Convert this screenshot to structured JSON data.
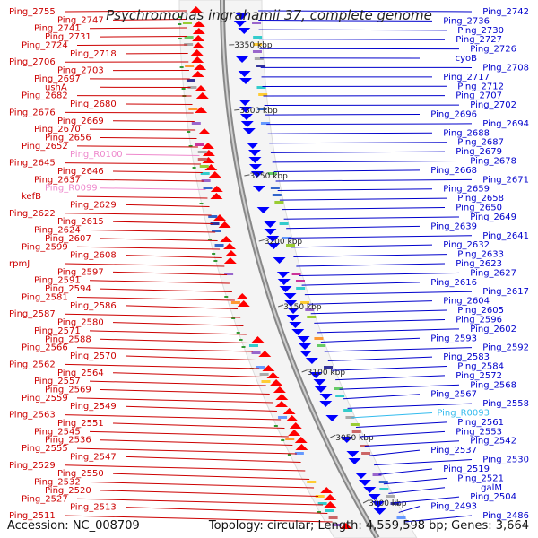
{
  "title": "Psychromonas ingrahamii 37, complete genome",
  "footer": {
    "accession": "Accession: NC_008709",
    "topology": "Topology: circular; Length: 4,559,598 bp; Genes: 3,664"
  },
  "colors": {
    "left_labels": "#cc0000",
    "right_labels": "#0000cc",
    "rna_left": "#ee88cc",
    "rna_right": "#33bbee",
    "backbone": "#888888",
    "forward_strand": "#ff0000",
    "reverse_strand": "#0000ff"
  },
  "position_markers": [
    "3350 kbp",
    "3300 kbp",
    "3250 kbp",
    "3200 kbp",
    "3150 kbp",
    "3100 kbp",
    "3050 kbp",
    "3000 kbp"
  ],
  "left_labels": [
    {
      "label": "Ping_2755",
      "type": "gene"
    },
    {
      "label": "Ping_2747",
      "type": "gene"
    },
    {
      "label": "Ping_2741",
      "type": "gene"
    },
    {
      "label": "Ping_2731",
      "type": "gene"
    },
    {
      "label": "Ping_2724",
      "type": "gene"
    },
    {
      "label": "Ping_2718",
      "type": "gene"
    },
    {
      "label": "Ping_2706",
      "type": "gene"
    },
    {
      "label": "Ping_2703",
      "type": "gene"
    },
    {
      "label": "Ping_2697",
      "type": "gene"
    },
    {
      "label": "ushA",
      "type": "gene"
    },
    {
      "label": "Ping_2682",
      "type": "gene"
    },
    {
      "label": "Ping_2680",
      "type": "gene"
    },
    {
      "label": "Ping_2676",
      "type": "gene"
    },
    {
      "label": "Ping_2669",
      "type": "gene"
    },
    {
      "label": "Ping_2670",
      "type": "gene"
    },
    {
      "label": "Ping_2656",
      "type": "gene"
    },
    {
      "label": "Ping_2652",
      "type": "gene"
    },
    {
      "label": "Ping_R0100",
      "type": "rna"
    },
    {
      "label": "Ping_2645",
      "type": "gene"
    },
    {
      "label": "Ping_2646",
      "type": "gene"
    },
    {
      "label": "Ping_2637",
      "type": "gene"
    },
    {
      "label": "Ping_R0099",
      "type": "rna"
    },
    {
      "label": "kefB",
      "type": "gene"
    },
    {
      "label": "Ping_2629",
      "type": "gene"
    },
    {
      "label": "Ping_2622",
      "type": "gene"
    },
    {
      "label": "Ping_2615",
      "type": "gene"
    },
    {
      "label": "Ping_2624",
      "type": "gene"
    },
    {
      "label": "Ping_2607",
      "type": "gene"
    },
    {
      "label": "Ping_2599",
      "type": "gene"
    },
    {
      "label": "Ping_2608",
      "type": "gene"
    },
    {
      "label": "rpmJ",
      "type": "gene"
    },
    {
      "label": "Ping_2597",
      "type": "gene"
    },
    {
      "label": "Ping_2591",
      "type": "gene"
    },
    {
      "label": "Ping_2594",
      "type": "gene"
    },
    {
      "label": "Ping_2581",
      "type": "gene"
    },
    {
      "label": "Ping_2586",
      "type": "gene"
    },
    {
      "label": "Ping_2587",
      "type": "gene"
    },
    {
      "label": "Ping_2580",
      "type": "gene"
    },
    {
      "label": "Ping_2571",
      "type": "gene"
    },
    {
      "label": "Ping_2588",
      "type": "gene"
    },
    {
      "label": "Ping_2566",
      "type": "gene"
    },
    {
      "label": "Ping_2570",
      "type": "gene"
    },
    {
      "label": "Ping_2562",
      "type": "gene"
    },
    {
      "label": "Ping_2564",
      "type": "gene"
    },
    {
      "label": "Ping_2557",
      "type": "gene"
    },
    {
      "label": "Ping_2569",
      "type": "gene"
    },
    {
      "label": "Ping_2559",
      "type": "gene"
    },
    {
      "label": "Ping_2549",
      "type": "gene"
    },
    {
      "label": "Ping_2563",
      "type": "gene"
    },
    {
      "label": "Ping_2551",
      "type": "gene"
    },
    {
      "label": "Ping_2545",
      "type": "gene"
    },
    {
      "label": "Ping_2536",
      "type": "gene"
    },
    {
      "label": "Ping_2555",
      "type": "gene"
    },
    {
      "label": "Ping_2547",
      "type": "gene"
    },
    {
      "label": "Ping_2529",
      "type": "gene"
    },
    {
      "label": "Ping_2550",
      "type": "gene"
    },
    {
      "label": "Ping_2532",
      "type": "gene"
    },
    {
      "label": "Ping_2520",
      "type": "gene"
    },
    {
      "label": "Ping_2527",
      "type": "gene"
    },
    {
      "label": "Ping_2513",
      "type": "gene"
    },
    {
      "label": "Ping_2511",
      "type": "gene"
    }
  ],
  "right_labels": [
    {
      "label": "Ping_2742",
      "type": "gene"
    },
    {
      "label": "Ping_2736",
      "type": "gene"
    },
    {
      "label": "Ping_2730",
      "type": "gene"
    },
    {
      "label": "Ping_2727",
      "type": "gene"
    },
    {
      "label": "Ping_2726",
      "type": "gene"
    },
    {
      "label": "cyoB",
      "type": "gene"
    },
    {
      "label": "Ping_2708",
      "type": "gene"
    },
    {
      "label": "Ping_2717",
      "type": "gene"
    },
    {
      "label": "Ping_2712",
      "type": "gene"
    },
    {
      "label": "Ping_2707",
      "type": "gene"
    },
    {
      "label": "Ping_2702",
      "type": "gene"
    },
    {
      "label": "Ping_2696",
      "type": "gene"
    },
    {
      "label": "Ping_2694",
      "type": "gene"
    },
    {
      "label": "Ping_2688",
      "type": "gene"
    },
    {
      "label": "Ping_2687",
      "type": "gene"
    },
    {
      "label": "Ping_2679",
      "type": "gene"
    },
    {
      "label": "Ping_2678",
      "type": "gene"
    },
    {
      "label": "Ping_2668",
      "type": "gene"
    },
    {
      "label": "Ping_2671",
      "type": "gene"
    },
    {
      "label": "Ping_2659",
      "type": "gene"
    },
    {
      "label": "Ping_2658",
      "type": "gene"
    },
    {
      "label": "Ping_2650",
      "type": "gene"
    },
    {
      "label": "Ping_2649",
      "type": "gene"
    },
    {
      "label": "Ping_2639",
      "type": "gene"
    },
    {
      "label": "Ping_2641",
      "type": "gene"
    },
    {
      "label": "Ping_2632",
      "type": "gene"
    },
    {
      "label": "Ping_2633",
      "type": "gene"
    },
    {
      "label": "Ping_2623",
      "type": "gene"
    },
    {
      "label": "Ping_2627",
      "type": "gene"
    },
    {
      "label": "Ping_2616",
      "type": "gene"
    },
    {
      "label": "Ping_2617",
      "type": "gene"
    },
    {
      "label": "Ping_2604",
      "type": "gene"
    },
    {
      "label": "Ping_2605",
      "type": "gene"
    },
    {
      "label": "Ping_2596",
      "type": "gene"
    },
    {
      "label": "Ping_2602",
      "type": "gene"
    },
    {
      "label": "Ping_2593",
      "type": "gene"
    },
    {
      "label": "Ping_2592",
      "type": "gene"
    },
    {
      "label": "Ping_2583",
      "type": "gene"
    },
    {
      "label": "Ping_2584",
      "type": "gene"
    },
    {
      "label": "Ping_2572",
      "type": "gene"
    },
    {
      "label": "Ping_2568",
      "type": "gene"
    },
    {
      "label": "Ping_2567",
      "type": "gene"
    },
    {
      "label": "Ping_2558",
      "type": "gene"
    },
    {
      "label": "Ping_R0093",
      "type": "rna"
    },
    {
      "label": "Ping_2561",
      "type": "gene"
    },
    {
      "label": "Ping_2553",
      "type": "gene"
    },
    {
      "label": "Ping_2542",
      "type": "gene"
    },
    {
      "label": "Ping_2537",
      "type": "gene"
    },
    {
      "label": "Ping_2530",
      "type": "gene"
    },
    {
      "label": "Ping_2519",
      "type": "gene"
    },
    {
      "label": "Ping_2521",
      "type": "gene"
    },
    {
      "label": "galM",
      "type": "gene"
    },
    {
      "label": "Ping_2504",
      "type": "gene"
    },
    {
      "label": "Ping_2493",
      "type": "gene"
    },
    {
      "label": "Ping_2486",
      "type": "gene"
    }
  ]
}
